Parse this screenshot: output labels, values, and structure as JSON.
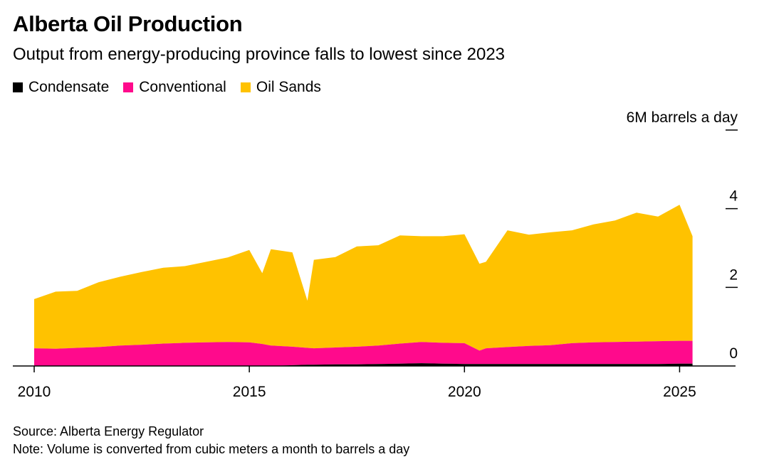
{
  "title": "Alberta Oil Production",
  "subtitle": "Output from energy-producing province falls to lowest since 2023",
  "source": "Source: Alberta Energy Regulator",
  "note": "Note: Volume is converted from cubic meters a month to barrels a day",
  "chart_data": {
    "type": "area",
    "stacked": true,
    "title": "Alberta Oil Production",
    "ylabel": "6M barrels a day",
    "ylim": [
      0,
      6
    ],
    "xlim": [
      2010,
      2026.3
    ],
    "y_ticks": [
      {
        "value": 0,
        "label": "0"
      },
      {
        "value": 2,
        "label": "2"
      },
      {
        "value": 4,
        "label": "4"
      },
      {
        "value": 6,
        "label": "6M barrels a day"
      }
    ],
    "x_ticks": [
      {
        "value": 2010,
        "label": "2010"
      },
      {
        "value": 2015,
        "label": "2015"
      },
      {
        "value": 2020,
        "label": "2020"
      },
      {
        "value": 2025,
        "label": "2025"
      }
    ],
    "grid": false,
    "legend_position": "top-left",
    "colors": {
      "Condensate": "#000000",
      "Conventional": "#ff0a8c",
      "Oil Sands": "#ffc200"
    },
    "x": [
      2010.0,
      2010.5,
      2011.0,
      2011.5,
      2012.0,
      2012.5,
      2013.0,
      2013.5,
      2014.0,
      2014.5,
      2015.0,
      2015.3,
      2015.5,
      2016.0,
      2016.35,
      2016.5,
      2017.0,
      2017.5,
      2018.0,
      2018.5,
      2019.0,
      2019.5,
      2020.0,
      2020.35,
      2020.5,
      2021.0,
      2021.5,
      2022.0,
      2022.5,
      2023.0,
      2023.5,
      2024.0,
      2024.5,
      2025.0,
      2025.3
    ],
    "series": [
      {
        "name": "Condensate",
        "values": [
          0.0,
          0.0,
          0.0,
          0.0,
          0.0,
          0.0,
          0.0,
          0.0,
          0.0,
          0.0,
          0.0,
          0.0,
          0.0,
          0.02,
          0.03,
          0.03,
          0.04,
          0.04,
          0.05,
          0.06,
          0.07,
          0.06,
          0.05,
          0.05,
          0.05,
          0.05,
          0.05,
          0.05,
          0.05,
          0.05,
          0.05,
          0.05,
          0.05,
          0.06,
          0.06
        ]
      },
      {
        "name": "Conventional",
        "values": [
          0.45,
          0.44,
          0.46,
          0.48,
          0.52,
          0.54,
          0.57,
          0.59,
          0.6,
          0.61,
          0.6,
          0.56,
          0.52,
          0.47,
          0.43,
          0.42,
          0.43,
          0.45,
          0.47,
          0.51,
          0.54,
          0.53,
          0.53,
          0.34,
          0.4,
          0.43,
          0.46,
          0.48,
          0.53,
          0.55,
          0.56,
          0.57,
          0.58,
          0.58,
          0.58
        ]
      },
      {
        "name": "Oil Sands",
        "values": [
          1.25,
          1.45,
          1.45,
          1.65,
          1.75,
          1.85,
          1.93,
          1.95,
          2.05,
          2.15,
          2.35,
          1.8,
          2.45,
          2.4,
          1.2,
          2.25,
          2.3,
          2.55,
          2.55,
          2.75,
          2.69,
          2.71,
          2.77,
          2.21,
          2.2,
          2.97,
          2.83,
          2.87,
          2.87,
          3.0,
          3.09,
          3.28,
          3.17,
          3.46,
          2.66
        ]
      }
    ]
  }
}
